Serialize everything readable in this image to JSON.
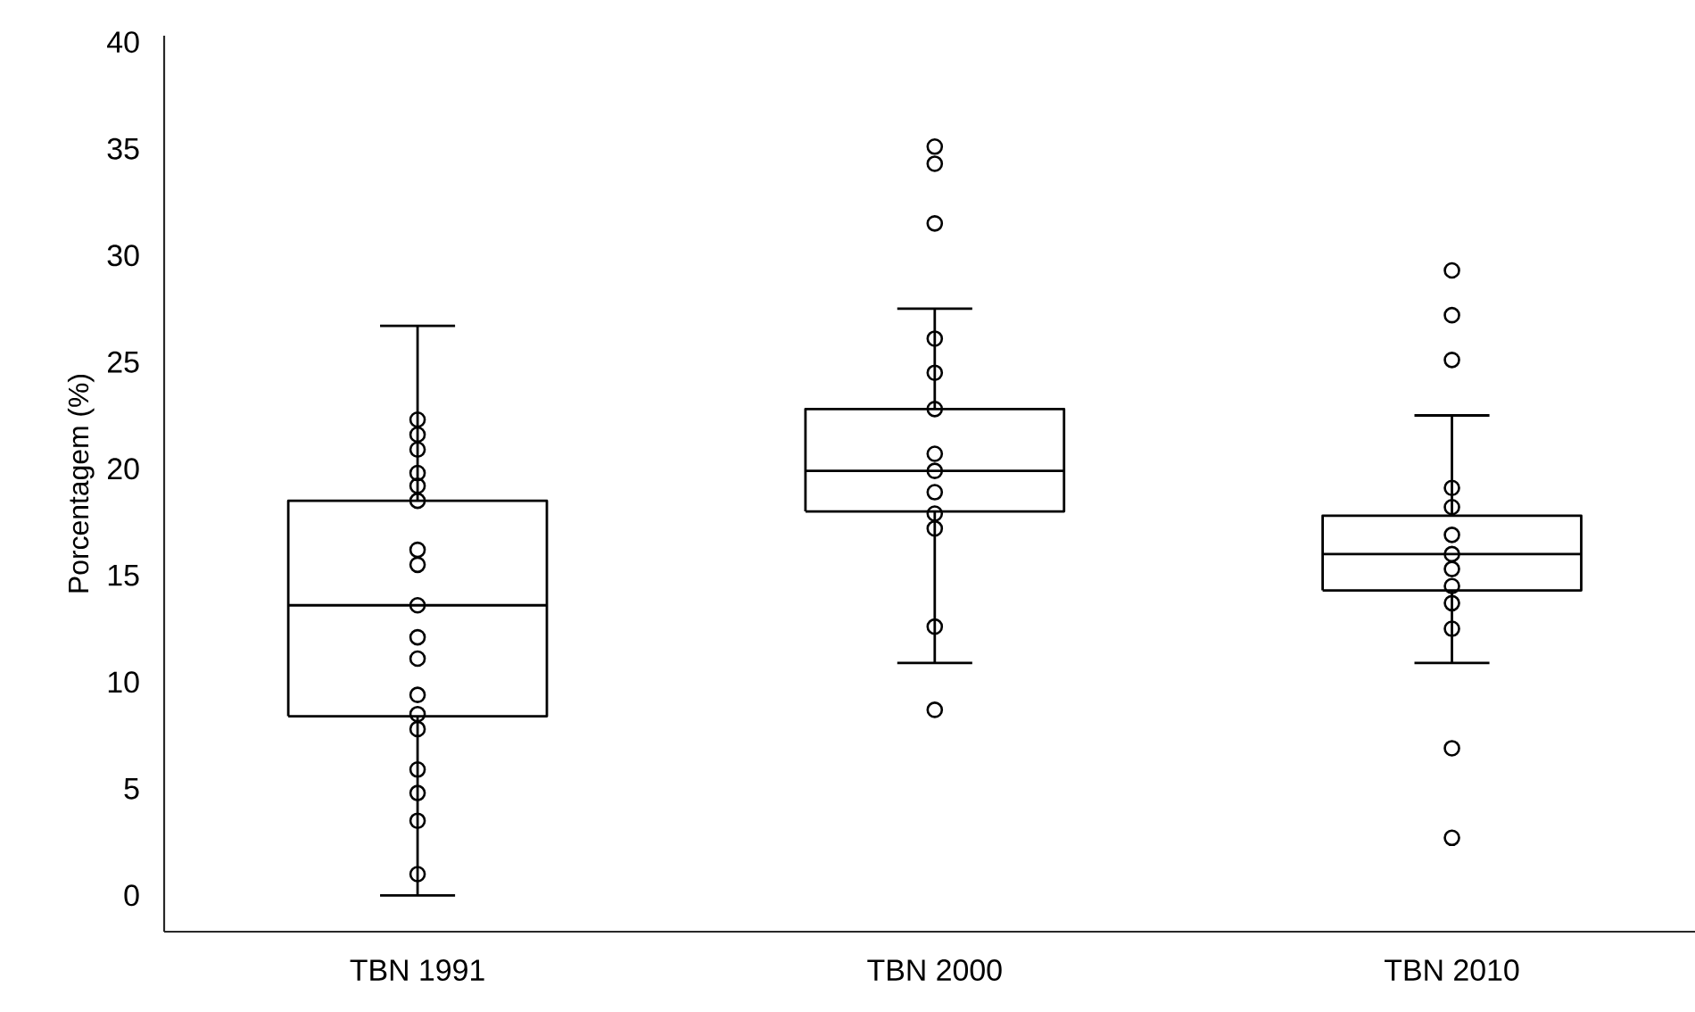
{
  "chart_data": {
    "type": "box",
    "ylabel": "Porcentagem (%)",
    "categories": [
      "TBN 1991",
      "TBN 2000",
      "TBN 2010"
    ],
    "ylim": [
      -1.7,
      40.3
    ],
    "yticks": [
      0,
      5,
      10,
      15,
      20,
      25,
      30,
      35,
      40
    ],
    "series": [
      {
        "type": "box",
        "color": "#000000",
        "boxes": [
          {
            "low": 0,
            "q1": 8.4,
            "median": 13.6,
            "q3": 18.5,
            "high": 26.7
          },
          {
            "low": 10.9,
            "q1": 18.0,
            "median": 19.9,
            "q3": 22.8,
            "high": 27.5
          },
          {
            "low": 10.9,
            "q1": 14.3,
            "median": 16.0,
            "q3": 17.8,
            "high": 22.5
          }
        ]
      },
      {
        "type": "scatter",
        "color": "#000000",
        "marker": "circle",
        "x": [
          "TBN 1991",
          "TBN 1991",
          "TBN 1991",
          "TBN 1991",
          "TBN 1991",
          "TBN 1991",
          "TBN 1991",
          "TBN 1991",
          "TBN 1991",
          "TBN 1991",
          "TBN 1991",
          "TBN 1991",
          "TBN 1991",
          "TBN 1991",
          "TBN 1991",
          "TBN 1991",
          "TBN 1991",
          "TBN 1991",
          "TBN 2000",
          "TBN 2000",
          "TBN 2000",
          "TBN 2000",
          "TBN 2000",
          "TBN 2000",
          "TBN 2000",
          "TBN 2000",
          "TBN 2000",
          "TBN 2000",
          "TBN 2000",
          "TBN 2000",
          "TBN 2000",
          "TBN 2010",
          "TBN 2010",
          "TBN 2010",
          "TBN 2010",
          "TBN 2010",
          "TBN 2010",
          "TBN 2010",
          "TBN 2010",
          "TBN 2010",
          "TBN 2010",
          "TBN 2010",
          "TBN 2010",
          "TBN 2010"
        ],
        "values": [
          22.3,
          21.6,
          20.9,
          19.8,
          19.2,
          18.5,
          16.2,
          15.5,
          13.6,
          12.1,
          11.1,
          9.4,
          8.5,
          7.8,
          5.9,
          4.8,
          3.5,
          1.0,
          35.1,
          34.3,
          31.5,
          26.1,
          24.5,
          22.8,
          20.7,
          19.9,
          18.9,
          17.9,
          17.2,
          12.6,
          8.7,
          29.3,
          27.2,
          25.1,
          19.1,
          18.2,
          16.9,
          16.0,
          15.3,
          14.5,
          13.7,
          12.5,
          6.9,
          2.7
        ]
      }
    ]
  }
}
